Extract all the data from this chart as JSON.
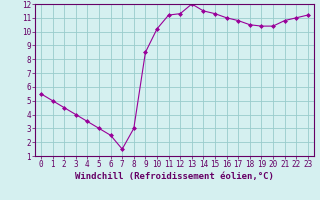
{
  "x": [
    0,
    1,
    2,
    3,
    4,
    5,
    6,
    7,
    8,
    9,
    10,
    11,
    12,
    13,
    14,
    15,
    16,
    17,
    18,
    19,
    20,
    21,
    22,
    23
  ],
  "y": [
    5.5,
    5.0,
    4.5,
    4.0,
    3.5,
    3.0,
    2.5,
    1.5,
    3.0,
    8.5,
    10.2,
    11.2,
    11.3,
    12.0,
    11.5,
    11.3,
    11.0,
    10.8,
    10.5,
    10.4,
    10.4,
    10.8,
    11.0,
    11.2
  ],
  "line_color": "#990099",
  "marker": "D",
  "marker_size": 2,
  "bg_color": "#d5f0f0",
  "grid_color": "#99cccc",
  "xlabel": "Windchill (Refroidissement éolien,°C)",
  "xlim": [
    -0.5,
    23.5
  ],
  "ylim": [
    1,
    12
  ],
  "yticks": [
    1,
    2,
    3,
    4,
    5,
    6,
    7,
    8,
    9,
    10,
    11,
    12
  ],
  "xticks": [
    0,
    1,
    2,
    3,
    4,
    5,
    6,
    7,
    8,
    9,
    10,
    11,
    12,
    13,
    14,
    15,
    16,
    17,
    18,
    19,
    20,
    21,
    22,
    23
  ],
  "xlabel_fontsize": 6.5,
  "tick_fontsize": 5.5,
  "axis_label_color": "#660066",
  "tick_color": "#660066",
  "spine_color": "#660066"
}
